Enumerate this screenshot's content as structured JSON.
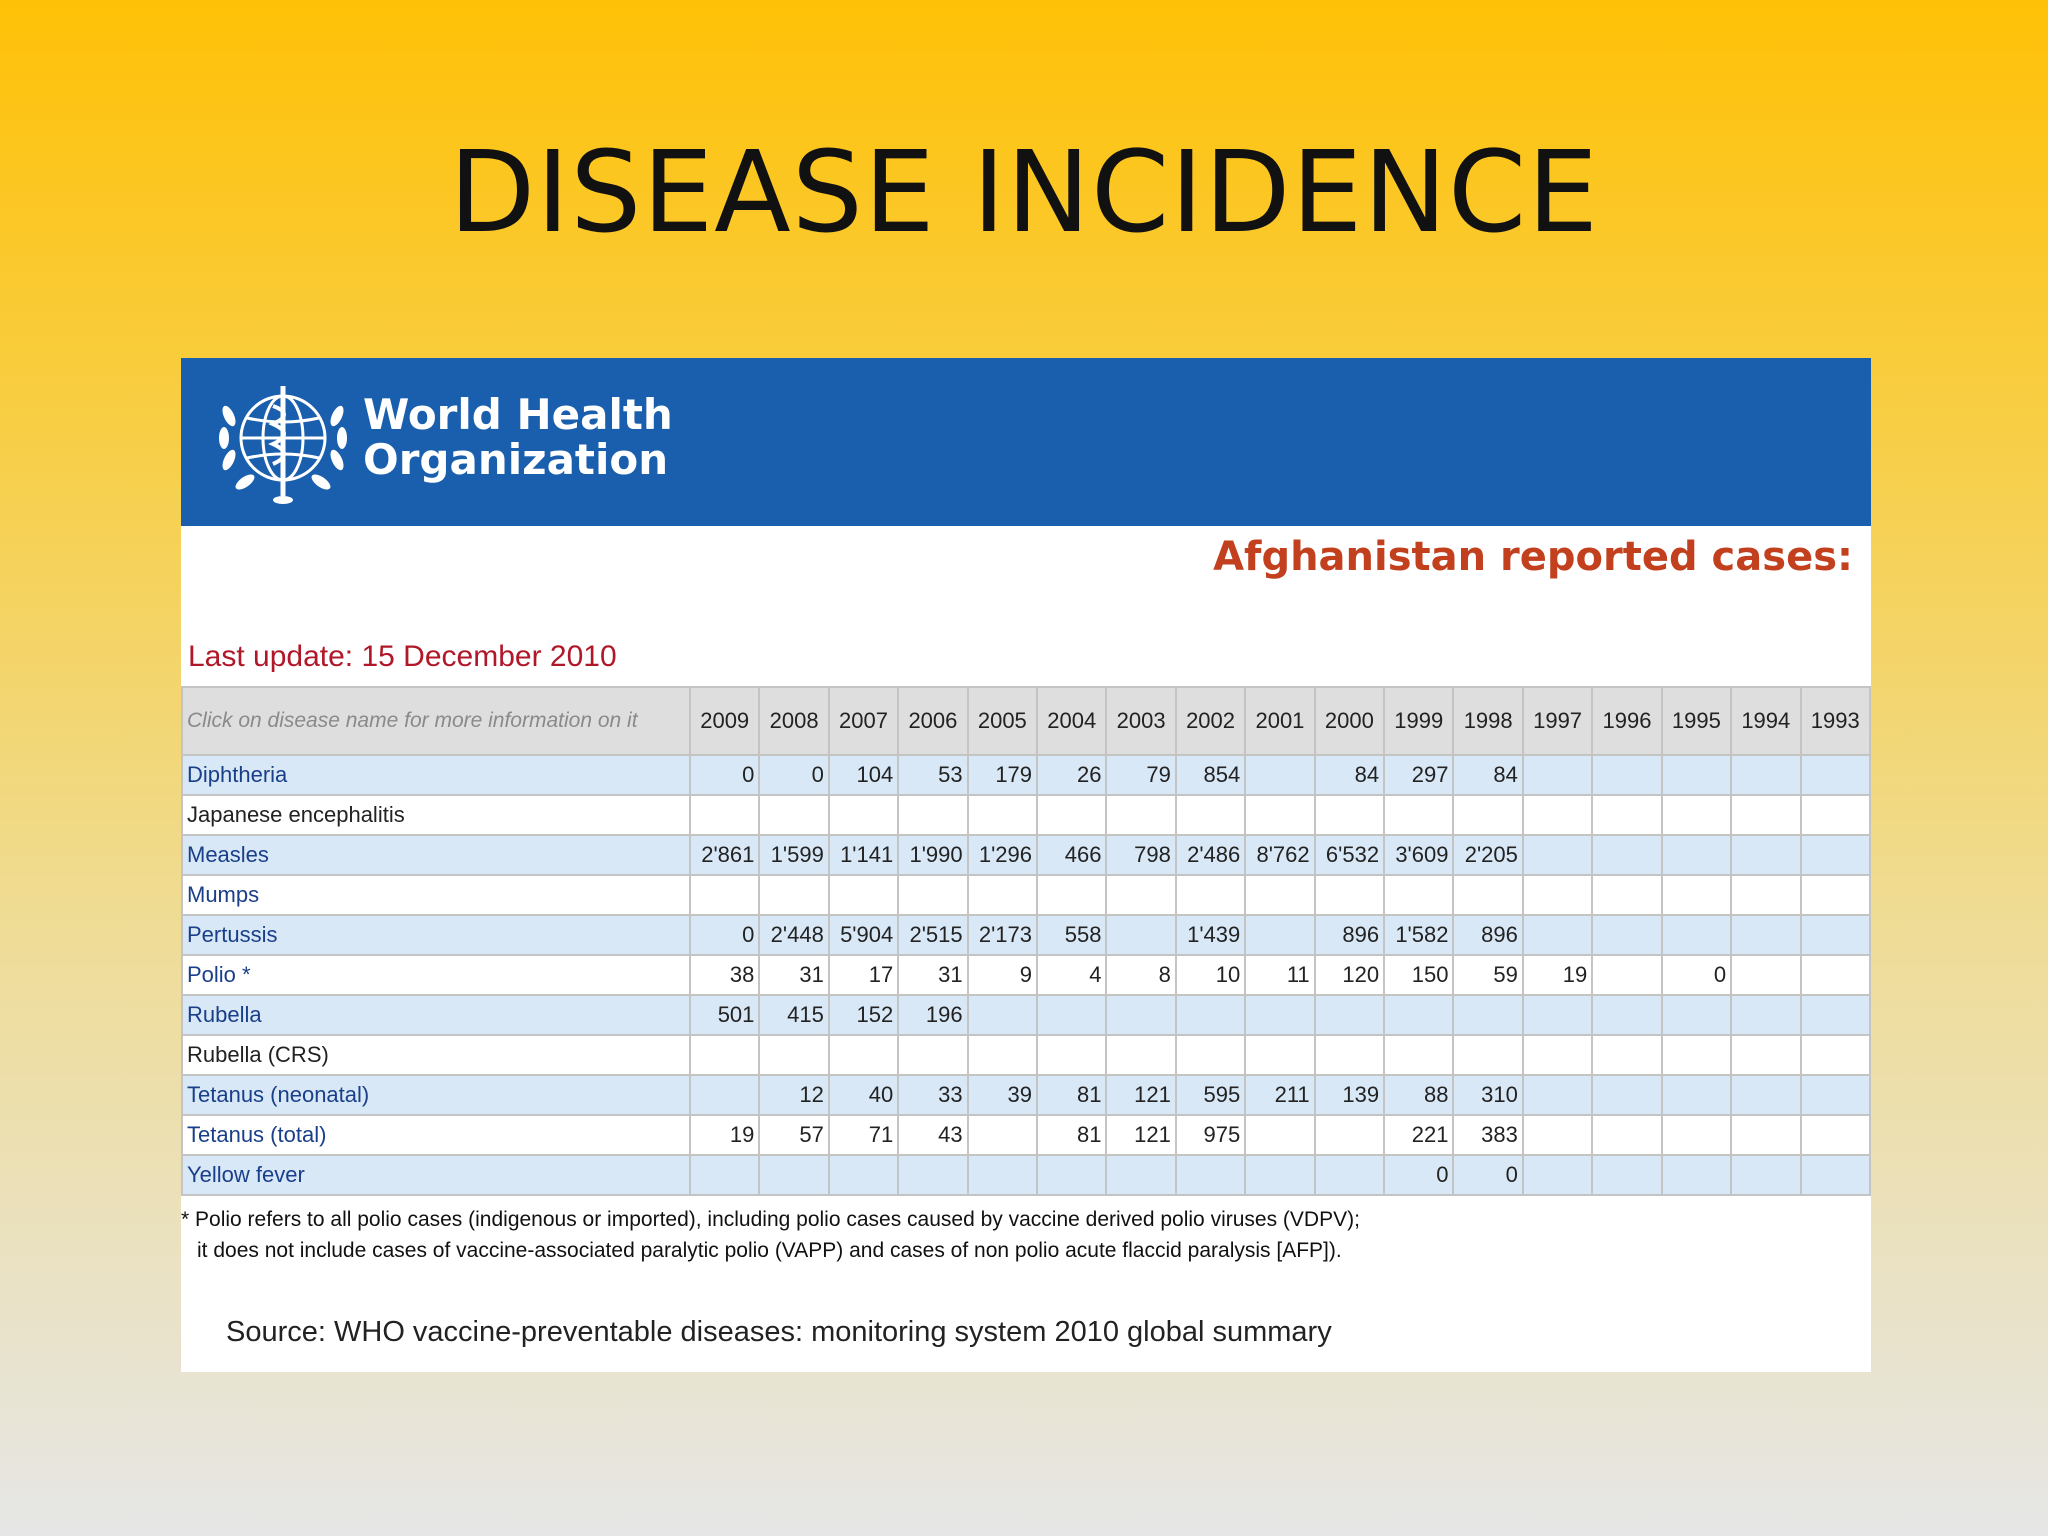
{
  "slide": {
    "title": "DISEASE INCIDENCE"
  },
  "who": {
    "org_line1": "World Health",
    "org_line2": "Organization"
  },
  "report": {
    "title": "Afghanistan reported cases:",
    "last_update": "Last update: 15 December 2010",
    "header_hint": "Click on disease name for more information on it",
    "years": [
      "2009",
      "2008",
      "2007",
      "2006",
      "2005",
      "2004",
      "2003",
      "2002",
      "2001",
      "2000",
      "1999",
      "1998",
      "1997",
      "1996",
      "1995",
      "1994",
      "1993"
    ],
    "rows": [
      {
        "disease": "Diphtheria",
        "link": true,
        "values": [
          "0",
          "0",
          "104",
          "53",
          "179",
          "26",
          "79",
          "854",
          "",
          "84",
          "297",
          "84",
          "",
          "",
          "",
          "",
          ""
        ]
      },
      {
        "disease": "Japanese encephalitis",
        "link": false,
        "values": [
          "",
          "",
          "",
          "",
          "",
          "",
          "",
          "",
          "",
          "",
          "",
          "",
          "",
          "",
          "",
          "",
          ""
        ]
      },
      {
        "disease": "Measles",
        "link": true,
        "values": [
          "2'861",
          "1'599",
          "1'141",
          "1'990",
          "1'296",
          "466",
          "798",
          "2'486",
          "8'762",
          "6'532",
          "3'609",
          "2'205",
          "",
          "",
          "",
          "",
          ""
        ]
      },
      {
        "disease": "Mumps",
        "link": true,
        "values": [
          "",
          "",
          "",
          "",
          "",
          "",
          "",
          "",
          "",
          "",
          "",
          "",
          "",
          "",
          "",
          "",
          ""
        ]
      },
      {
        "disease": "Pertussis",
        "link": true,
        "values": [
          "0",
          "2'448",
          "5'904",
          "2'515",
          "2'173",
          "558",
          "",
          "1'439",
          "",
          "896",
          "1'582",
          "896",
          "",
          "",
          "",
          "",
          ""
        ]
      },
      {
        "disease": "Polio  *",
        "link": true,
        "values": [
          "38",
          "31",
          "17",
          "31",
          "9",
          "4",
          "8",
          "10",
          "11",
          "120",
          "150",
          "59",
          "19",
          "",
          "0",
          "",
          ""
        ]
      },
      {
        "disease": "Rubella",
        "link": true,
        "values": [
          "501",
          "415",
          "152",
          "196",
          "",
          "",
          "",
          "",
          "",
          "",
          "",
          "",
          "",
          "",
          "",
          "",
          ""
        ]
      },
      {
        "disease": "Rubella (CRS)",
        "link": false,
        "values": [
          "",
          "",
          "",
          "",
          "",
          "",
          "",
          "",
          "",
          "",
          "",
          "",
          "",
          "",
          "",
          "",
          ""
        ]
      },
      {
        "disease": "Tetanus (neonatal)",
        "link": true,
        "values": [
          "",
          "12",
          "40",
          "33",
          "39",
          "81",
          "121",
          "595",
          "211",
          "139",
          "88",
          "310",
          "",
          "",
          "",
          "",
          ""
        ]
      },
      {
        "disease": "Tetanus (total)",
        "link": true,
        "values": [
          "19",
          "57",
          "71",
          "43",
          "",
          "81",
          "121",
          "975",
          "",
          "",
          "221",
          "383",
          "",
          "",
          "",
          "",
          ""
        ]
      },
      {
        "disease": "Yellow fever",
        "link": true,
        "values": [
          "",
          "",
          "",
          "",
          "",
          "",
          "",
          "",
          "",
          "",
          "0",
          "0",
          "",
          "",
          "",
          "",
          ""
        ]
      }
    ],
    "footnote_line1": "* Polio refers to all polio cases (indigenous or imported), including polio cases caused by vaccine derived polio viruses (VDPV);",
    "footnote_line2": "it does not include cases of vaccine-associated paralytic polio (VAPP) and cases of non polio acute flaccid paralysis [AFP]).",
    "source": "Source: WHO vaccine-preventable diseases: monitoring system 2010 global summary"
  },
  "colors": {
    "banner": "#1a5fad",
    "title_red": "#c2401e",
    "update_red": "#b0182a",
    "row_shade": "#d9e8f6",
    "link_blue": "#1a3f8a"
  }
}
